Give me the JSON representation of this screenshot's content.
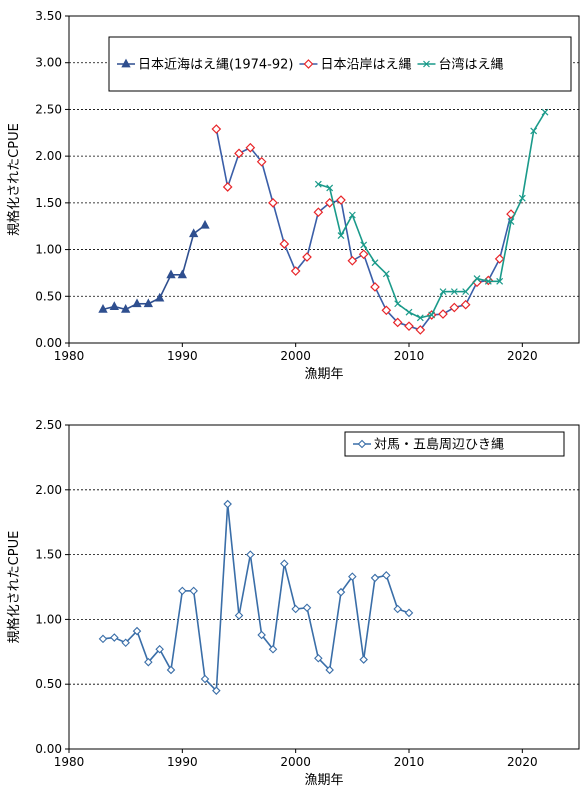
{
  "chart_data": [
    {
      "type": "line",
      "xlabel": "漁期年",
      "ylabel": "規格化されたCPUE",
      "xlim": [
        1980,
        2025
      ],
      "ylim": [
        0,
        3.5
      ],
      "xticks": [
        "1980",
        "1990",
        "2000",
        "2010",
        "2020"
      ],
      "yticks": [
        "0.00",
        "0.50",
        "1.00",
        "1.50",
        "2.00",
        "2.50",
        "3.00",
        "3.50"
      ],
      "grid": "horizontal-dashed",
      "legend_position": "top",
      "series": [
        {
          "name": "日本近海はえ縄(1974-92)",
          "color": "#2f4f8f",
          "marker": "triangle",
          "x": [
            1983,
            1984,
            1985,
            1986,
            1987,
            1988,
            1989,
            1990,
            1991,
            1992
          ],
          "y": [
            0.36,
            0.39,
            0.36,
            0.42,
            0.42,
            0.48,
            0.73,
            0.73,
            1.17,
            1.26
          ]
        },
        {
          "name": "日本沿岸はえ縄",
          "color": "#e8262a",
          "marker": "diamond",
          "line_color": "#3a5ea8",
          "x": [
            1993,
            1994,
            1995,
            1996,
            1997,
            1998,
            1999,
            2000,
            2001,
            2002,
            2003,
            2004,
            2005,
            2006,
            2007,
            2008,
            2009,
            2010,
            2011,
            2012,
            2013,
            2014,
            2015,
            2016,
            2017,
            2018,
            2019
          ],
          "y": [
            2.29,
            1.67,
            2.03,
            2.09,
            1.94,
            1.5,
            1.06,
            0.77,
            0.92,
            1.4,
            1.5,
            1.53,
            0.88,
            0.95,
            0.6,
            0.35,
            0.22,
            0.18,
            0.14,
            0.3,
            0.31,
            0.38,
            0.41,
            0.65,
            0.67,
            0.9,
            1.38
          ]
        },
        {
          "name": "台湾はえ縄",
          "color": "#1a9a8a",
          "marker": "x",
          "x": [
            2002,
            2003,
            2004,
            2005,
            2006,
            2007,
            2008,
            2009,
            2010,
            2011,
            2012,
            2013,
            2014,
            2015,
            2016,
            2017,
            2018,
            2019,
            2020,
            2021,
            2022
          ],
          "y": [
            1.7,
            1.66,
            1.15,
            1.37,
            1.05,
            0.86,
            0.74,
            0.42,
            0.33,
            0.27,
            0.3,
            0.55,
            0.55,
            0.55,
            0.69,
            0.66,
            0.66,
            1.3,
            1.55,
            2.27,
            2.47
          ]
        }
      ]
    },
    {
      "type": "line",
      "xlabel": "漁期年",
      "ylabel": "規格化されたCPUE",
      "xlim": [
        1980,
        2025
      ],
      "ylim": [
        0,
        2.5
      ],
      "xticks": [
        "1980",
        "1990",
        "2000",
        "2010",
        "2020"
      ],
      "yticks": [
        "0.00",
        "0.50",
        "1.00",
        "1.50",
        "2.00",
        "2.50"
      ],
      "grid": "horizontal-dashed",
      "legend_position": "top-right",
      "series": [
        {
          "name": "対馬・五島周辺ひき縄",
          "color": "#3a6ea8",
          "marker": "diamond-open",
          "x": [
            1983,
            1984,
            1985,
            1986,
            1987,
            1988,
            1989,
            1990,
            1991,
            1992,
            1993,
            1994,
            1995,
            1996,
            1997,
            1998,
            1999,
            2000,
            2001,
            2002,
            2003,
            2004,
            2005,
            2006,
            2007,
            2008,
            2009,
            2010
          ],
          "y": [
            0.85,
            0.86,
            0.82,
            0.91,
            0.67,
            0.77,
            0.61,
            1.22,
            1.22,
            0.54,
            0.45,
            1.89,
            1.03,
            1.5,
            0.88,
            0.77,
            1.43,
            1.08,
            1.09,
            0.7,
            0.61,
            1.21,
            1.33,
            0.69,
            1.32,
            1.34,
            1.08,
            1.05
          ]
        }
      ]
    }
  ]
}
